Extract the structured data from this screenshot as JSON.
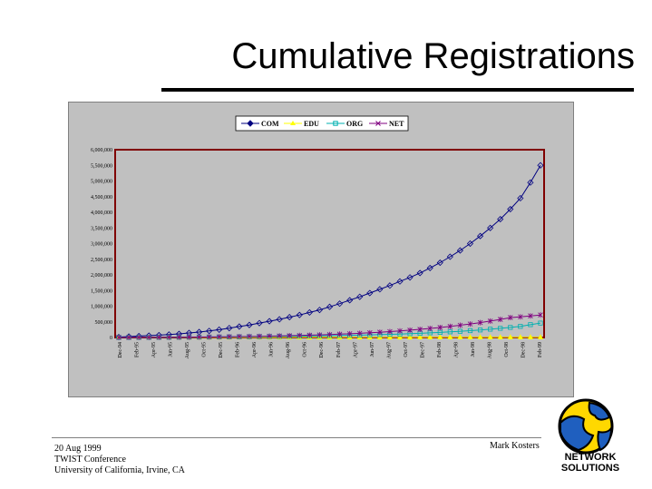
{
  "slide": {
    "title": "Cumulative Registrations",
    "footer": {
      "date": "20 Aug 1999",
      "event": "TWIST Conference",
      "place": "University of California, Irvine, CA",
      "author": "Mark Kosters"
    },
    "logo": {
      "line1": "NETWORK",
      "line2": "SOLUTIONS"
    }
  },
  "chart_data": {
    "type": "line",
    "title": "",
    "xlabel": "",
    "ylabel": "",
    "ylim": [
      0,
      6000000
    ],
    "grid": false,
    "legend_position": "top",
    "x_tick_labels": [
      "Dec-94",
      "Feb-95",
      "Apr-95",
      "Jun-95",
      "Aug-95",
      "Oct-95",
      "Dec-95",
      "Feb-96",
      "Apr-96",
      "Jun-96",
      "Aug-96",
      "Oct-96",
      "Dec-96",
      "Feb-97",
      "Apr-97",
      "Jun-97",
      "Aug-97",
      "Oct-97",
      "Dec-97",
      "Feb-98",
      "Apr-98",
      "Jun-98",
      "Aug-98",
      "Oct-98",
      "Dec-98",
      "Feb-99"
    ],
    "y_tick_labels": [
      "6,000,000",
      "5,500,000",
      "5,000,000",
      "4,500,000",
      "4,000,000",
      "3,500,000",
      "3,000,000",
      "2,500,000",
      "2,000,000",
      "1,500,000",
      "1,000,000",
      "500,000",
      "0"
    ],
    "y_tick_values": [
      6000000,
      5500000,
      5000000,
      4500000,
      4000000,
      3500000,
      3000000,
      2500000,
      2000000,
      1500000,
      1000000,
      500000,
      0
    ],
    "series": [
      {
        "name": "COM",
        "color": "#000080",
        "marker": "diamond",
        "values": [
          15000,
          30000,
          45000,
          60000,
          75000,
          95000,
          115000,
          145000,
          175000,
          210000,
          250000,
          300000,
          350000,
          400000,
          460000,
          520000,
          580000,
          650000,
          720000,
          800000,
          880000,
          980000,
          1080000,
          1190000,
          1300000,
          1420000,
          1540000,
          1660000,
          1790000,
          1920000,
          2060000,
          2220000,
          2390000,
          2580000,
          2780000,
          3000000,
          3240000,
          3500000,
          3780000,
          4100000,
          4450000,
          4950000,
          5500000
        ]
      },
      {
        "name": "EDU",
        "color": "#ffff00",
        "marker": "triangle",
        "values": [
          1000,
          1200,
          1400,
          1600,
          1800,
          2000,
          2200,
          2400,
          2600,
          2800,
          3000,
          3200,
          3400,
          3600,
          3800,
          4000,
          4200,
          4400,
          4600,
          4800,
          5000,
          5200,
          5400,
          5600,
          5800,
          6000,
          6200,
          6400,
          6600,
          6800,
          7000,
          7200,
          7400,
          7600,
          7800,
          8000,
          8200,
          8400,
          8600,
          8800,
          9000,
          9200,
          9400
        ]
      },
      {
        "name": "ORG",
        "color": "#00b0b0",
        "marker": "square",
        "values": [
          1000,
          2000,
          3000,
          4000,
          5000,
          6000,
          8000,
          10000,
          12000,
          14000,
          16000,
          18000,
          21000,
          24000,
          27000,
          30000,
          34000,
          38000,
          42000,
          47000,
          52000,
          57000,
          63000,
          69000,
          76000,
          84000,
          92000,
          101000,
          111000,
          122000,
          134000,
          148000,
          163000,
          180000,
          198000,
          218000,
          240000,
          265000,
          292000,
          322000,
          355000,
          410000,
          460000
        ]
      },
      {
        "name": "NET",
        "color": "#800080",
        "marker": "x",
        "values": [
          1000,
          2000,
          3000,
          4000,
          6000,
          8000,
          10000,
          12000,
          15000,
          18000,
          21000,
          25000,
          29000,
          33000,
          38000,
          44000,
          50000,
          57000,
          65000,
          74000,
          84000,
          95000,
          107000,
          120000,
          134000,
          150000,
          168000,
          188000,
          210000,
          234000,
          260000,
          289000,
          320000,
          354000,
          391000,
          432000,
          476000,
          524000,
          578000,
          636000,
          660000,
          690000,
          720000
        ]
      }
    ]
  }
}
